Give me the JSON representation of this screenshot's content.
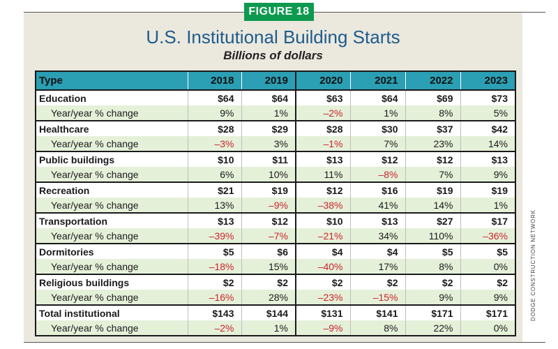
{
  "figure_label": "FIGURE 18",
  "title": "U.S. Institutional Building Starts",
  "subtitle": "Billions of dollars",
  "credit": "DODGE CONSTRUCTION NETWORK",
  "table": {
    "type_header": "Type",
    "years": [
      "2018",
      "2019",
      "2020",
      "2021",
      "2022",
      "2023"
    ],
    "rows": [
      {
        "name": "Education",
        "values": [
          "$64",
          "$64",
          "$63",
          "$64",
          "$69",
          "$73"
        ],
        "change_label": "Year/year % change",
        "changes": [
          "9%",
          "1%",
          "–2%",
          "1%",
          "8%",
          "5%"
        ]
      },
      {
        "name": "Healthcare",
        "values": [
          "$28",
          "$29",
          "$28",
          "$30",
          "$37",
          "$42"
        ],
        "change_label": "Year/year % change",
        "changes": [
          "–3%",
          "3%",
          "–1%",
          "7%",
          "23%",
          "14%"
        ]
      },
      {
        "name": "Public buildings",
        "values": [
          "$10",
          "$11",
          "$13",
          "$12",
          "$12",
          "$13"
        ],
        "change_label": "Year/year % change",
        "changes": [
          "6%",
          "10%",
          "11%",
          "–8%",
          "7%",
          "9%"
        ]
      },
      {
        "name": "Recreation",
        "values": [
          "$21",
          "$19",
          "$12",
          "$16",
          "$19",
          "$19"
        ],
        "change_label": "Year/year % change",
        "changes": [
          "13%",
          "–9%",
          "–38%",
          "41%",
          "14%",
          "1%"
        ]
      },
      {
        "name": "Transportation",
        "values": [
          "$13",
          "$12",
          "$10",
          "$13",
          "$27",
          "$17"
        ],
        "change_label": "Year/year % change",
        "changes": [
          "–39%",
          "–7%",
          "–21%",
          "34%",
          "110%",
          "–36%"
        ]
      },
      {
        "name": "Dormitories",
        "values": [
          "$5",
          "$6",
          "$4",
          "$4",
          "$5",
          "$5"
        ],
        "change_label": "Year/year % change",
        "changes": [
          "–18%",
          "15%",
          "–40%",
          "17%",
          "8%",
          "0%"
        ]
      },
      {
        "name": "Religious buildings",
        "values": [
          "$2",
          "$2",
          "$2",
          "$2",
          "$2",
          "$2"
        ],
        "change_label": "Year/year % change",
        "changes": [
          "–16%",
          "28%",
          "–23%",
          "–15%",
          "9%",
          "9%"
        ]
      },
      {
        "name": "Total institutional",
        "values": [
          "$143",
          "$144",
          "$131",
          "$141",
          "$171",
          "$171"
        ],
        "change_label": "Year/year % change",
        "changes": [
          "–2%",
          "1%",
          "–9%",
          "8%",
          "22%",
          "0%"
        ]
      }
    ]
  },
  "colors": {
    "badge": "#0d9a4f",
    "title": "#1d5c8c",
    "header": "#2b9fb3",
    "change_row": "#e5f0d9",
    "negative": "#c8252c",
    "panel": "#ebe8de"
  }
}
